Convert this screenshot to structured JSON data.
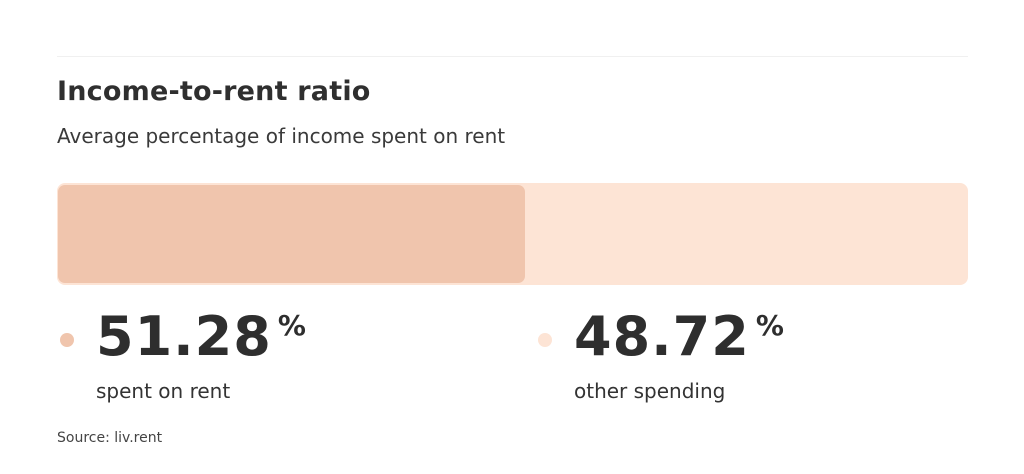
{
  "header": {
    "title": "Income-to-rent ratio",
    "subtitle": "Average percentage of income spent on rent"
  },
  "stats": [
    {
      "value": "51.28",
      "unit": "%",
      "label": "spent on rent",
      "color": "#f0c5ad"
    },
    {
      "value": "48.72",
      "unit": "%",
      "label": "other spending",
      "color": "#fde4d5"
    }
  ],
  "footer": {
    "source": "Source: liv.rent"
  },
  "chart_data": {
    "type": "bar",
    "orientation": "horizontal-stacked",
    "title": "Income-to-rent ratio",
    "subtitle": "Average percentage of income spent on rent",
    "categories": [
      "spent on rent",
      "other spending"
    ],
    "values": [
      51.28,
      48.72
    ],
    "unit": "%",
    "colors": [
      "#f0c5ad",
      "#fde4d5"
    ],
    "xlim": [
      0,
      100
    ],
    "grid": false,
    "legend_position": "bottom",
    "annotations": [
      "Source: liv.rent"
    ]
  }
}
